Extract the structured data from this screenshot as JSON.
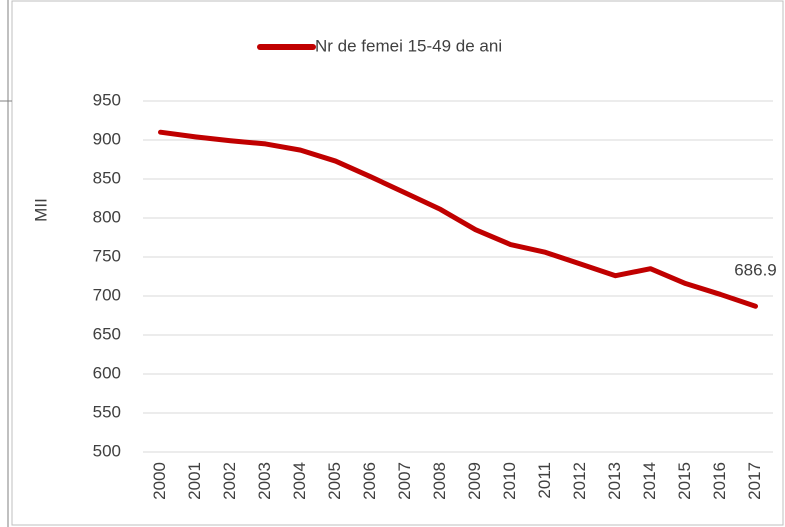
{
  "chart_data": {
    "type": "line",
    "categories": [
      "2000",
      "2001",
      "2002",
      "2003",
      "2004",
      "2005",
      "2006",
      "2007",
      "2008",
      "2009",
      "2010",
      "2011",
      "2012",
      "2013",
      "2014",
      "2015",
      "2016",
      "2017"
    ],
    "series": [
      {
        "name": "Nr de femei 15-49 de ani",
        "color": "#c00000",
        "values": [
          910,
          904,
          899,
          895,
          887,
          873,
          853,
          832,
          811,
          785,
          766,
          756,
          741,
          726,
          735,
          716,
          702,
          686.9
        ]
      }
    ],
    "y_label": "MII",
    "ylim": [
      500,
      950
    ],
    "yticks": [
      500,
      550,
      600,
      650,
      700,
      750,
      800,
      850,
      900,
      950
    ],
    "grid": true,
    "legend": "top"
  }
}
